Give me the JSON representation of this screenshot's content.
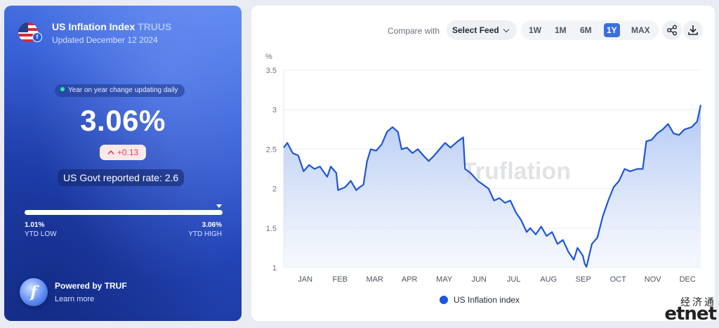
{
  "header": {
    "title": "US Inflation Index",
    "ticker": "TRUUS",
    "updated": "Updated December 12 2024",
    "flag_icon": "us-flag-icon"
  },
  "stats": {
    "pill": "Year on year change updating daily",
    "value": "3.06%",
    "change": "+0.13",
    "govt": "US Govt reported rate: 2.6",
    "ytd_low_value": "1.01%",
    "ytd_low_label": "YTD LOW",
    "ytd_high_value": "3.06%",
    "ytd_high_label": "YTD HIGH",
    "ytd_position": 0.98
  },
  "footer": {
    "powered": "Powered by TRUF",
    "learn": "Learn more"
  },
  "toolbar": {
    "compare_label": "Compare with",
    "feed_label": "Select Feed",
    "ranges": [
      "1W",
      "1M",
      "6M",
      "1Y",
      "MAX"
    ],
    "active_range": "1Y",
    "share_icon": "share-icon",
    "download_icon": "download-icon"
  },
  "watermark": {
    "chart": "Truflation",
    "corner_cn": "经济通",
    "corner_en": "etnet"
  },
  "chart_data": {
    "type": "area",
    "unit_label": "%",
    "y_ticks": [
      "3.5",
      "3",
      "2.5",
      "2",
      "1.5",
      "1"
    ],
    "ylim": [
      1,
      3.5
    ],
    "grid": true,
    "months": [
      "JAN",
      "FEB",
      "MAR",
      "APR",
      "MAY",
      "JUN",
      "JUL",
      "AUG",
      "SEP",
      "OCT",
      "NOV",
      "DEC"
    ],
    "series": [
      {
        "name": "US Inflation index",
        "color": "#1f55d8",
        "points": [
          [
            0,
            2.52
          ],
          [
            0.1,
            2.58
          ],
          [
            0.25,
            2.45
          ],
          [
            0.4,
            2.42
          ],
          [
            0.55,
            2.22
          ],
          [
            0.7,
            2.3
          ],
          [
            0.85,
            2.25
          ],
          [
            1.0,
            2.28
          ],
          [
            1.2,
            2.15
          ],
          [
            1.3,
            2.28
          ],
          [
            1.45,
            2.2
          ],
          [
            1.5,
            1.98
          ],
          [
            1.7,
            2.02
          ],
          [
            1.85,
            2.1
          ],
          [
            2.0,
            1.98
          ],
          [
            2.1,
            2.02
          ],
          [
            2.2,
            2.05
          ],
          [
            2.3,
            2.35
          ],
          [
            2.4,
            2.5
          ],
          [
            2.55,
            2.48
          ],
          [
            2.7,
            2.56
          ],
          [
            2.85,
            2.72
          ],
          [
            3.0,
            2.78
          ],
          [
            3.15,
            2.72
          ],
          [
            3.25,
            2.5
          ],
          [
            3.4,
            2.52
          ],
          [
            3.55,
            2.45
          ],
          [
            3.7,
            2.5
          ],
          [
            3.85,
            2.42
          ],
          [
            4.0,
            2.35
          ],
          [
            4.15,
            2.42
          ],
          [
            4.3,
            2.5
          ],
          [
            4.45,
            2.58
          ],
          [
            4.6,
            2.52
          ],
          [
            4.8,
            2.6
          ],
          [
            4.95,
            2.65
          ],
          [
            5.0,
            2.25
          ],
          [
            5.15,
            2.2
          ],
          [
            5.35,
            2.1
          ],
          [
            5.5,
            2.05
          ],
          [
            5.65,
            2.0
          ],
          [
            5.8,
            1.85
          ],
          [
            5.95,
            1.88
          ],
          [
            6.1,
            1.82
          ],
          [
            6.25,
            1.85
          ],
          [
            6.4,
            1.7
          ],
          [
            6.55,
            1.6
          ],
          [
            6.7,
            1.45
          ],
          [
            6.8,
            1.5
          ],
          [
            6.95,
            1.42
          ],
          [
            7.1,
            1.52
          ],
          [
            7.25,
            1.4
          ],
          [
            7.4,
            1.45
          ],
          [
            7.55,
            1.3
          ],
          [
            7.7,
            1.35
          ],
          [
            7.85,
            1.2
          ],
          [
            8.0,
            1.1
          ],
          [
            8.1,
            1.25
          ],
          [
            8.25,
            1.15
          ],
          [
            8.3,
            1.05
          ],
          [
            8.35,
            1.01
          ],
          [
            8.5,
            1.3
          ],
          [
            8.65,
            1.38
          ],
          [
            8.8,
            1.65
          ],
          [
            8.95,
            1.85
          ],
          [
            9.1,
            2.02
          ],
          [
            9.25,
            2.1
          ],
          [
            9.4,
            2.25
          ],
          [
            9.55,
            2.22
          ],
          [
            9.75,
            2.25
          ],
          [
            9.9,
            2.25
          ],
          [
            10.0,
            2.6
          ],
          [
            10.15,
            2.62
          ],
          [
            10.3,
            2.7
          ],
          [
            10.45,
            2.75
          ],
          [
            10.6,
            2.82
          ],
          [
            10.75,
            2.7
          ],
          [
            10.9,
            2.68
          ],
          [
            11.05,
            2.75
          ],
          [
            11.25,
            2.78
          ],
          [
            11.4,
            2.85
          ],
          [
            11.5,
            3.06
          ]
        ]
      }
    ]
  }
}
